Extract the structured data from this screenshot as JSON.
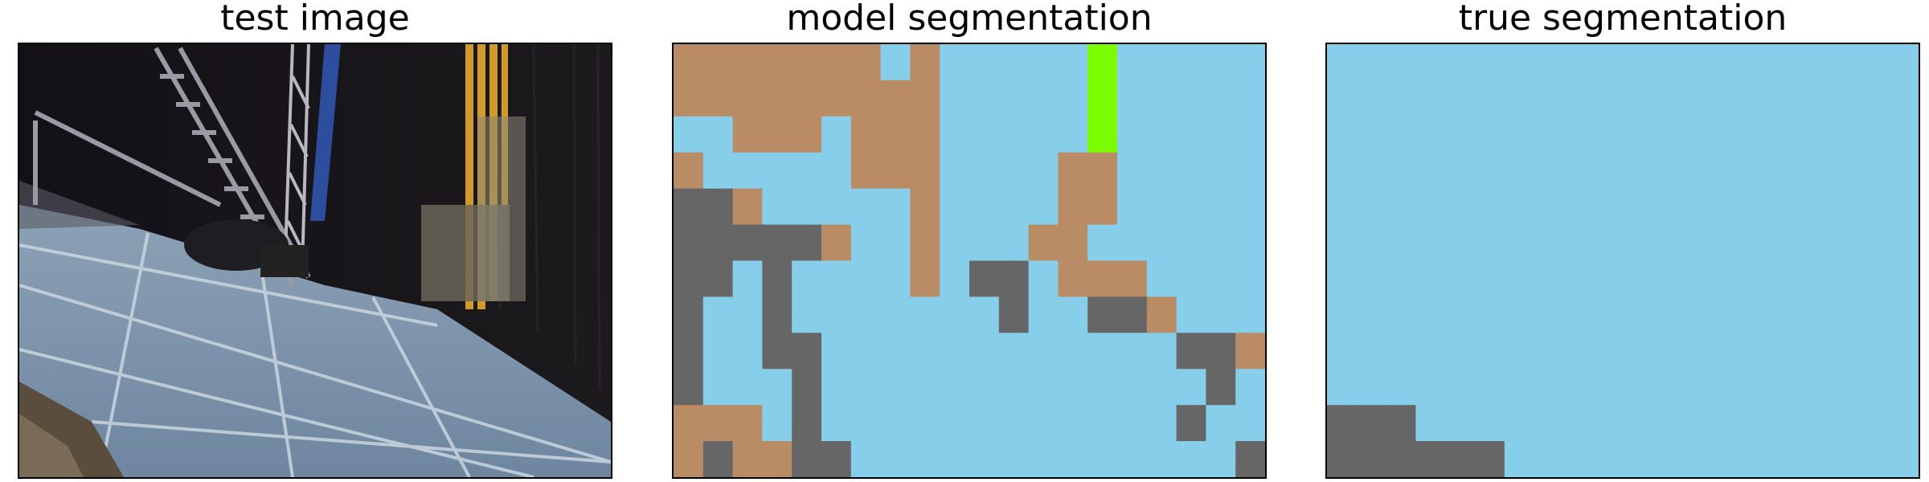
{
  "titles": [
    "test image",
    "model segmentation",
    "true segmentation"
  ],
  "colors": {
    "sky": "#87CEEB",
    "brown": "#BA8C66",
    "gray": "#666666",
    "green": "#7CFC00"
  },
  "model_grid": [
    "BBBBBBBSBSSSSSGSSSSS",
    "BBBBBBBBBSSSSSGSSSSS",
    "SSBBBSBBBSSSSSGSSSSS",
    "BSSSSSBBBSSSSBBSSSSS",
    "GGBSSSSSBSSSSBBSSSSS",
    "GGGGGBSSBSSSBBSSSSSS",
    "GGSGSSSSBSGGSBBBSSSS",
    "GSSGSSSSSSSGSSGGBSSS",
    "GSSGGSSSSSSSSSSSSGGB",
    "GSSSGSSSSSSSSSSSSSGS",
    "BBBSGSSSSSSSSSSSSGSS",
    "BGBBGGSSSSSSSSSSSSSG"
  ],
  "true_grid": [
    "SSSSSSSSSSSSSSSSSSSS",
    "SSSSSSSSSSSSSSSSSSSS",
    "SSSSSSSSSSSSSSSSSSSS",
    "SSSSSSSSSSSSSSSSSSSS",
    "SSSSSSSSSSSSSSSSSSSS",
    "SSSSSSSSSSSSSSSSSSSS",
    "SSSSSSSSSSSSSSSSSSSS",
    "SSSSSSSSSSSSSSSSSSSS",
    "SSSSSSSSSSSSSSSSSSSS",
    "SSSSSSSSSSSSSSSSSSSS",
    "GGGSSSSSSSSSSSSSSSSS",
    "GGGGGGSSSSSSSSSSSSSS"
  ]
}
